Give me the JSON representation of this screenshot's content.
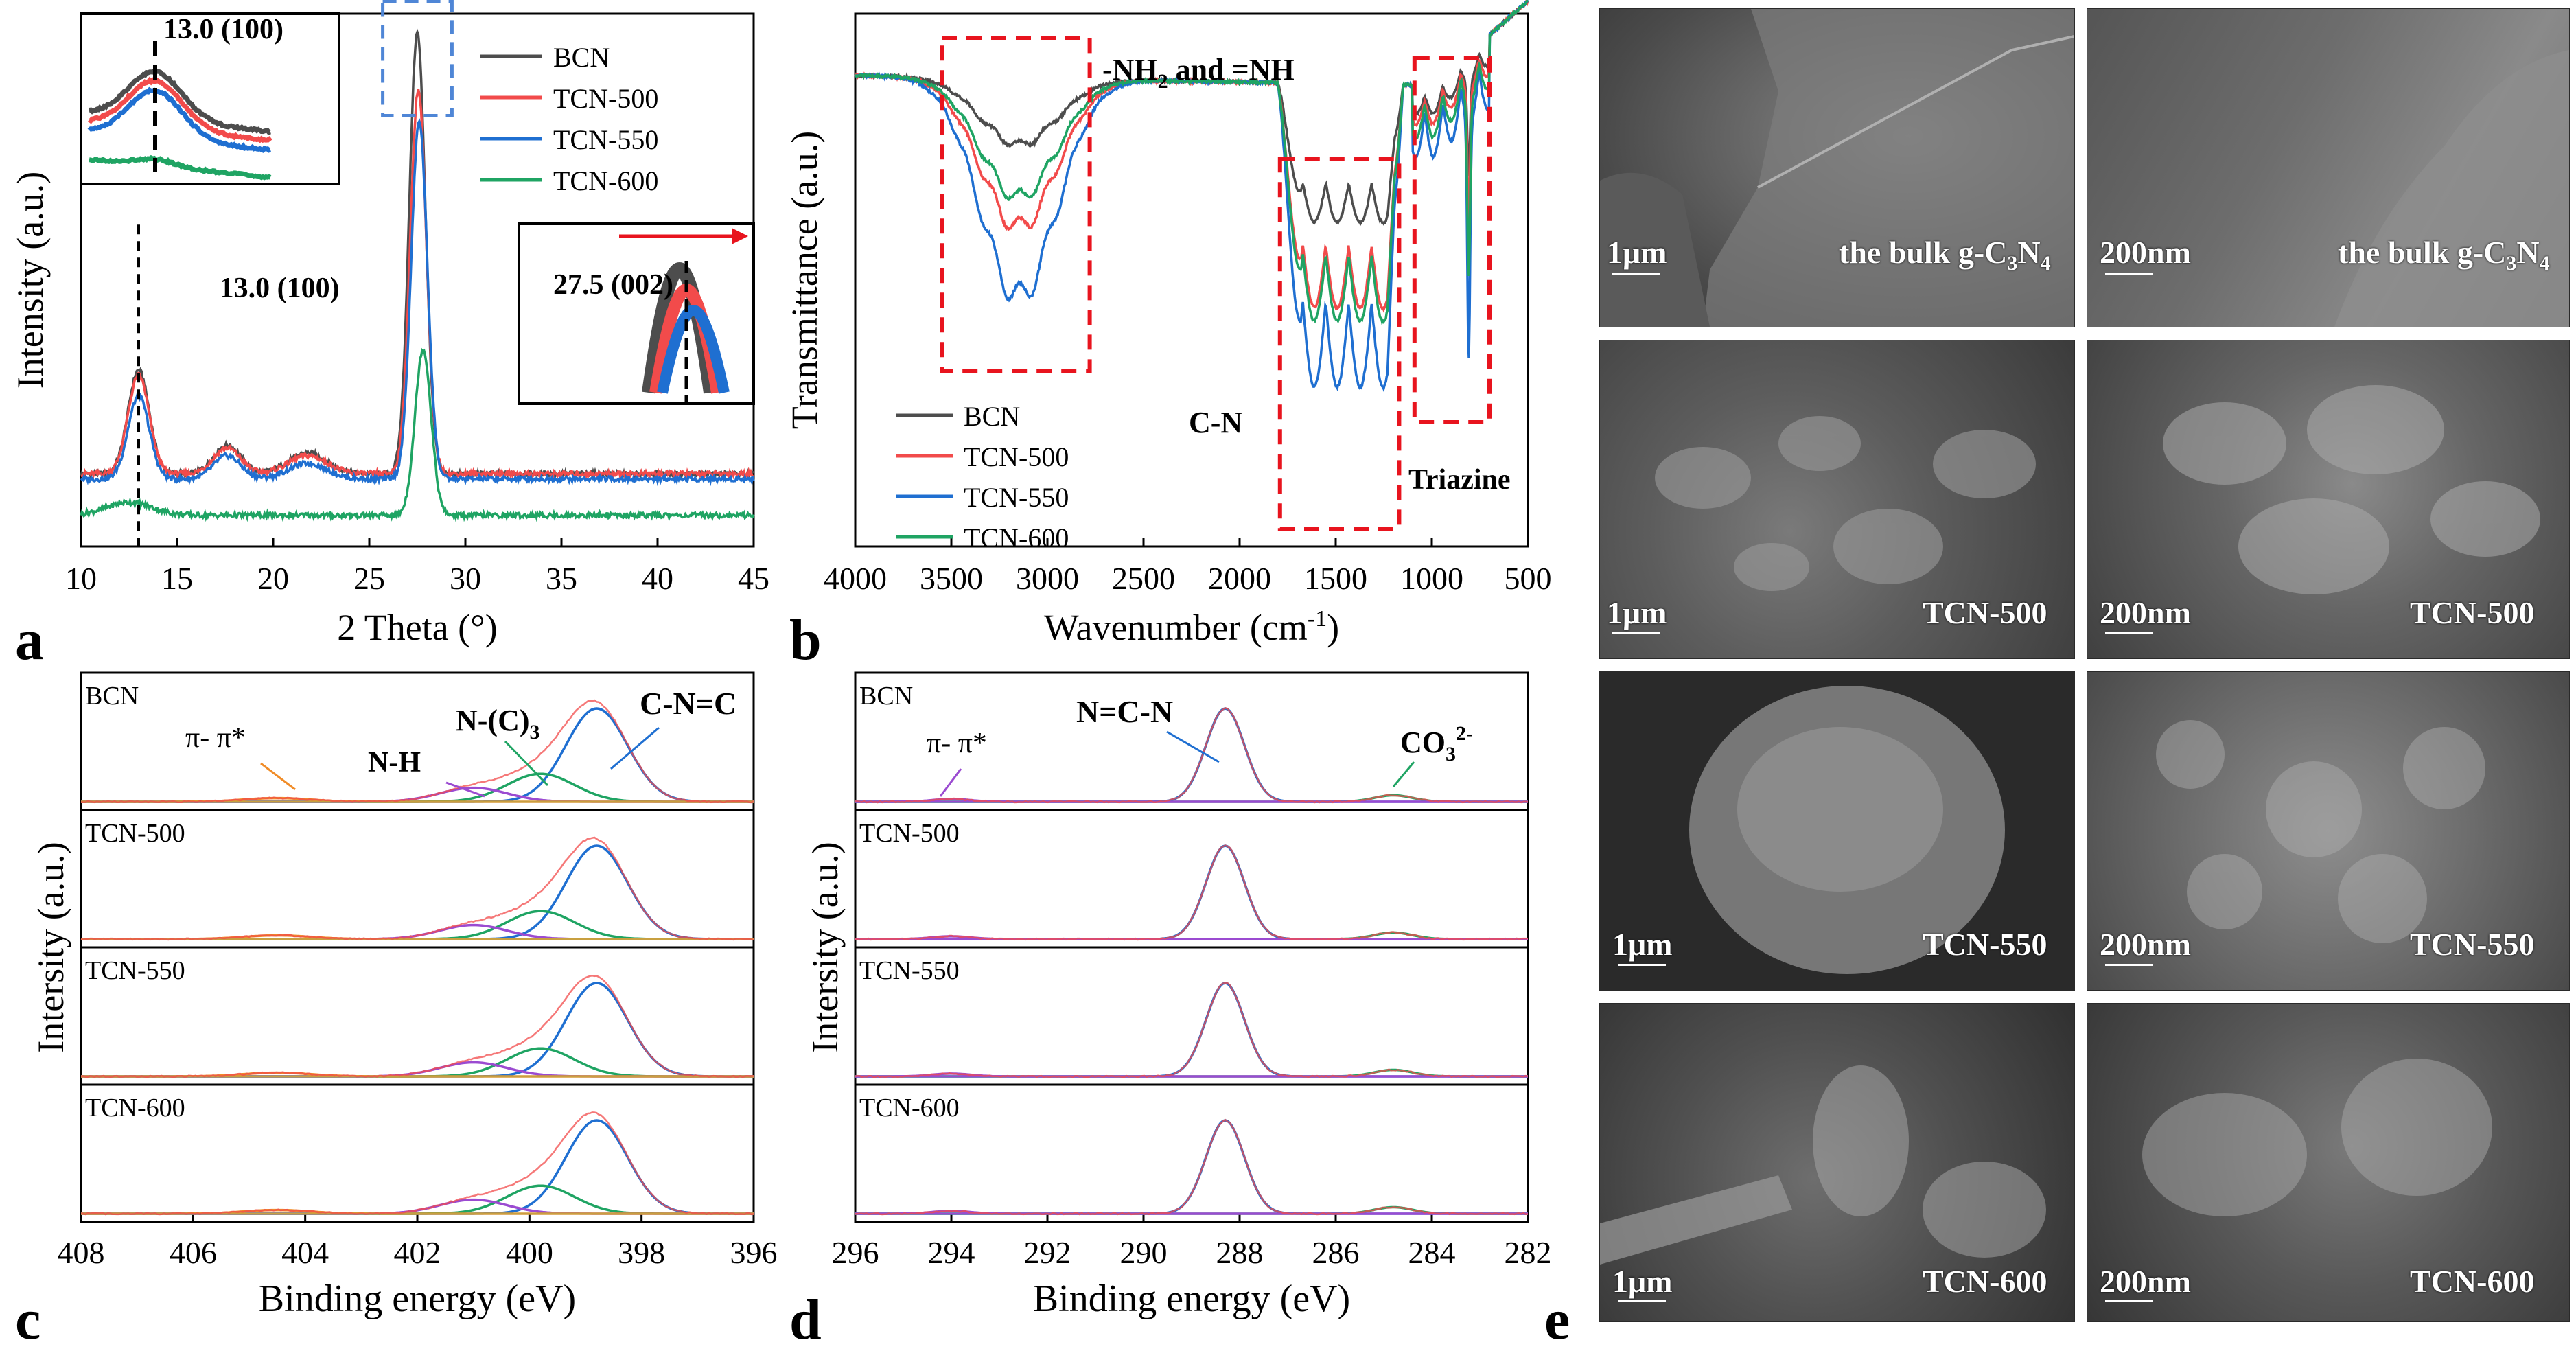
{
  "colors": {
    "BCN": "#4d4d4d",
    "TCN-500": "#f24b4b",
    "TCN-550": "#1f6fd1",
    "TCN-600": "#1fa463",
    "purple": "#9b4bd1",
    "orange": "#f08c28",
    "gold": "#c8a040",
    "red_box": "#e8141e",
    "blue_box": "#4f86d6"
  },
  "panel_letters": {
    "a": "a",
    "b": "b",
    "c": "c",
    "d": "d",
    "e": "e"
  },
  "chart_data": [
    {
      "panel": "a",
      "type": "line",
      "title": "",
      "xlabel": "2 Theta (°)",
      "ylabel": "Intensity (a.u.)",
      "xlim": [
        10,
        45
      ],
      "xticks": [
        10,
        15,
        20,
        25,
        30,
        35,
        40,
        45
      ],
      "legend": [
        "BCN",
        "TCN-500",
        "TCN-550",
        "TCN-600"
      ],
      "legend_position": "top-right",
      "series": [
        {
          "name": "BCN",
          "baseline": 0.14,
          "peaks": [
            [
              13.0,
              0.2,
              0.55
            ],
            [
              17.6,
              0.055,
              0.7
            ],
            [
              21.8,
              0.04,
              1.0
            ],
            [
              27.5,
              0.85,
              0.42
            ]
          ]
        },
        {
          "name": "TCN-500",
          "baseline": 0.14,
          "peaks": [
            [
              13.0,
              0.19,
              0.55
            ],
            [
              17.6,
              0.05,
              0.7
            ],
            [
              21.8,
              0.035,
              1.0
            ],
            [
              27.55,
              0.74,
              0.42
            ]
          ]
        },
        {
          "name": "TCN-550",
          "baseline": 0.13,
          "peaks": [
            [
              13.0,
              0.16,
              0.55
            ],
            [
              17.6,
              0.045,
              0.7
            ],
            [
              21.8,
              0.03,
              1.0
            ],
            [
              27.6,
              0.69,
              0.42
            ]
          ]
        },
        {
          "name": "TCN-600",
          "baseline": 0.06,
          "peaks": [
            [
              12.5,
              0.025,
              1.2
            ],
            [
              27.8,
              0.32,
              0.42
            ]
          ]
        }
      ],
      "annotations": [
        "13.0 (100)",
        "13.0 (100)",
        "27.5 (002)"
      ]
    },
    {
      "panel": "b",
      "type": "line",
      "title": "",
      "xlabel": "Wavenumber (cm",
      "xlabel_sup": "-1",
      "xlabel_end": ")",
      "ylabel": "Transmittance (a.u.)",
      "xlim": [
        4000,
        500
      ],
      "xticks": [
        4000,
        3500,
        3000,
        2500,
        2000,
        1500,
        1000,
        500
      ],
      "legend": [
        "BCN",
        "TCN-500",
        "TCN-550",
        "TCN-600"
      ],
      "legend_position": "bottom-left",
      "series": [
        {
          "name": "BCN",
          "broad_depth": 0.2,
          "cn_depth": 0.42,
          "triazine_depth": 0.22
        },
        {
          "name": "TCN-500",
          "broad_depth": 0.45,
          "cn_depth": 0.68,
          "triazine_depth": 0.3
        },
        {
          "name": "TCN-550",
          "broad_depth": 0.66,
          "cn_depth": 0.92,
          "triazine_depth": 0.55
        },
        {
          "name": "TCN-600",
          "broad_depth": 0.36,
          "cn_depth": 0.72,
          "triazine_depth": 0.4
        }
      ],
      "annotations": [
        "-NH",
        "2",
        " and =NH",
        "C-N",
        "Triazine"
      ]
    },
    {
      "panel": "c",
      "type": "line",
      "title": "",
      "xlabel": "Binding energy (eV)",
      "ylabel": "Intersity (a.u.)",
      "xlim": [
        408,
        396
      ],
      "xticks": [
        408,
        406,
        404,
        402,
        400,
        398,
        396
      ],
      "stacks": [
        "BCN",
        "TCN-500",
        "TCN-550",
        "TCN-600"
      ],
      "components": [
        {
          "name": "C-N=C",
          "center": 398.8,
          "color": "#1f6fd1"
        },
        {
          "name": "N-(C)3",
          "center": 399.8,
          "color": "#1fa463"
        },
        {
          "name": "N-H",
          "center": 401.0,
          "color": "#9b4bd1"
        },
        {
          "name": "π- π*",
          "center": 404.5,
          "color": "#f08c28"
        }
      ],
      "annotations": [
        "π- π*",
        "N-H",
        "N-(C)",
        "3",
        "C-N=C"
      ]
    },
    {
      "panel": "d",
      "type": "line",
      "title": "",
      "xlabel": "Binding energy (eV)",
      "ylabel": "Intersity (a.u.)",
      "xlim": [
        296,
        282
      ],
      "xticks": [
        296,
        294,
        292,
        290,
        288,
        286,
        284,
        282
      ],
      "stacks": [
        "BCN",
        "TCN-500",
        "TCN-550",
        "TCN-600"
      ],
      "components": [
        {
          "name": "N=C-N",
          "center": 288.3,
          "color": "#1f6fd1"
        },
        {
          "name": "CO3 2-",
          "center": 284.8,
          "color": "#1fa463"
        },
        {
          "name": "π- π*",
          "center": 294.0,
          "color": "#9b4bd1"
        }
      ],
      "annotations": [
        "π- π*",
        "N=C-N",
        "CO",
        "3",
        "2-"
      ]
    }
  ],
  "sem": {
    "panels": [
      {
        "scale": "1μm",
        "sample_prefix": "the bulk g-C",
        "sub1": "3",
        "mid": "N",
        "sub2": "4"
      },
      {
        "scale": "200nm",
        "sample_prefix": "the bulk g-C",
        "sub1": "3",
        "mid": "N",
        "sub2": "4"
      },
      {
        "scale": "1μm",
        "sample": "TCN-500"
      },
      {
        "scale": "200nm",
        "sample": "TCN-500"
      },
      {
        "scale": "1μm",
        "sample": "TCN-550"
      },
      {
        "scale": "200nm",
        "sample": "TCN-550"
      },
      {
        "scale": "1μm",
        "sample": "TCN-600"
      },
      {
        "scale": "200nm",
        "sample": "TCN-600"
      }
    ]
  }
}
